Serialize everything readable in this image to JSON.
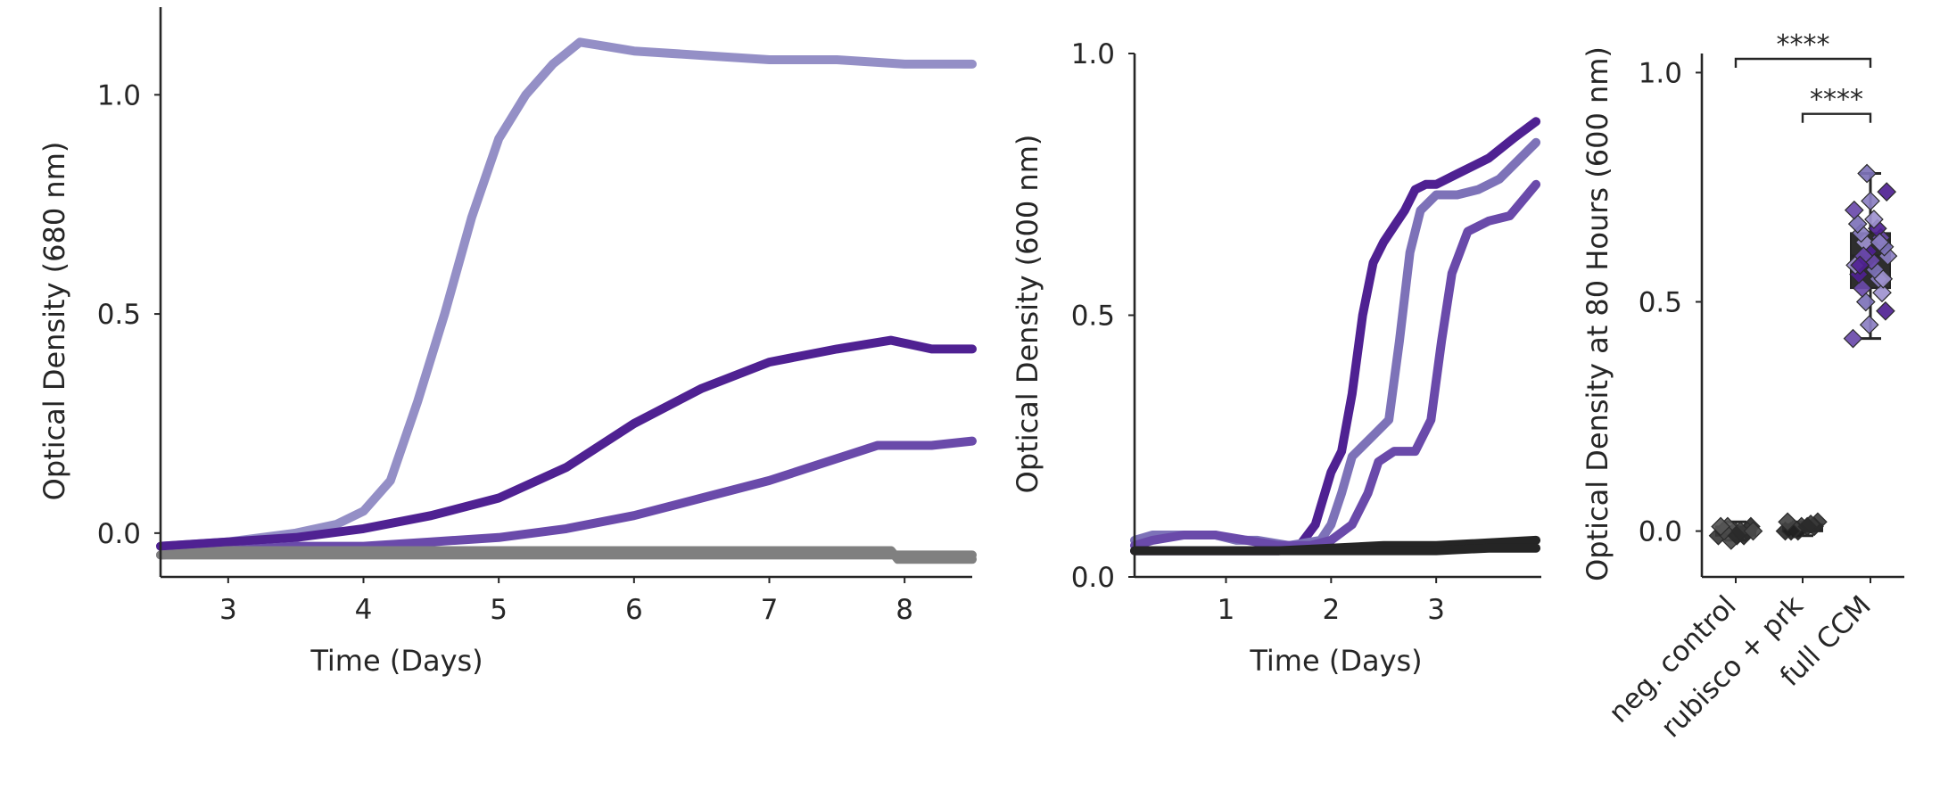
{
  "colors": {
    "dark_purple": "#4f2192",
    "mid_purple": "#6a4aaa",
    "lavender": "#948fc6",
    "light_purple": "#7d72b8",
    "gray": "#808080",
    "dark_gray": "#252525",
    "black": "#262626"
  },
  "chart_data": [
    {
      "type": "line",
      "xlabel": "Time (Days)",
      "ylabel": "Optical Density (680 nm)",
      "xlim": [
        2.5,
        8.5
      ],
      "ylim": [
        -0.1,
        1.2
      ],
      "xticks": [
        3,
        4,
        5,
        6,
        7,
        8
      ],
      "yticks": [
        0.0,
        0.5,
        1.0
      ],
      "xtick_labels": [
        "3",
        "4",
        "5",
        "6",
        "7",
        "8"
      ],
      "ytick_labels": [
        "0.0",
        "0.5",
        "1.0"
      ],
      "grid": false,
      "series": [
        {
          "color": "#948fc6",
          "x": [
            2.5,
            3.0,
            3.5,
            3.8,
            4.0,
            4.2,
            4.4,
            4.6,
            4.8,
            5.0,
            5.2,
            5.4,
            5.6,
            5.8,
            6.0,
            6.5,
            7.0,
            7.5,
            8.0,
            8.5
          ],
          "y": [
            -0.03,
            -0.02,
            0.0,
            0.02,
            0.05,
            0.12,
            0.3,
            0.5,
            0.72,
            0.9,
            1.0,
            1.07,
            1.12,
            1.11,
            1.1,
            1.09,
            1.08,
            1.08,
            1.07,
            1.07
          ]
        },
        {
          "color": "#4f2192",
          "x": [
            2.5,
            3.0,
            3.5,
            4.0,
            4.5,
            5.0,
            5.5,
            6.0,
            6.5,
            7.0,
            7.5,
            7.9,
            8.2,
            8.5
          ],
          "y": [
            -0.03,
            -0.02,
            -0.01,
            0.01,
            0.04,
            0.08,
            0.15,
            0.25,
            0.33,
            0.39,
            0.42,
            0.44,
            0.42,
            0.42
          ]
        },
        {
          "color": "#6a4aaa",
          "x": [
            2.5,
            3.0,
            3.5,
            4.0,
            4.5,
            5.0,
            5.5,
            6.0,
            6.5,
            7.0,
            7.5,
            7.8,
            8.2,
            8.5
          ],
          "y": [
            -0.05,
            -0.04,
            -0.03,
            -0.03,
            -0.02,
            -0.01,
            0.01,
            0.04,
            0.08,
            0.12,
            0.17,
            0.2,
            0.2,
            0.21
          ]
        },
        {
          "color": "#808080",
          "x": [
            2.5,
            3.0,
            4.0,
            5.0,
            6.0,
            7.0,
            7.9,
            8.5
          ],
          "y": [
            -0.05,
            -0.05,
            -0.05,
            -0.05,
            -0.05,
            -0.05,
            -0.05,
            -0.05
          ]
        },
        {
          "color": "#808080",
          "x": [
            2.5,
            3.0,
            4.0,
            5.0,
            6.0,
            7.0,
            7.9,
            7.95,
            8.5
          ],
          "y": [
            -0.05,
            -0.04,
            -0.04,
            -0.04,
            -0.04,
            -0.04,
            -0.04,
            -0.06,
            -0.06
          ]
        }
      ]
    },
    {
      "type": "line",
      "xlabel": "Time (Days)",
      "ylabel": "Optical Density (600 nm)",
      "xlim": [
        0.13,
        4.0
      ],
      "ylim": [
        0.0,
        1.0
      ],
      "xticks": [
        1,
        2,
        3
      ],
      "yticks": [
        0.0,
        0.5,
        1.0
      ],
      "xtick_labels": [
        "1",
        "2",
        "3"
      ],
      "ytick_labels": [
        "0.0",
        "0.5",
        "1.0"
      ],
      "grid": false,
      "series": [
        {
          "color": "#4f2192",
          "x": [
            0.13,
            0.5,
            1.0,
            1.5,
            1.7,
            1.85,
            2.0,
            2.1,
            2.2,
            2.3,
            2.4,
            2.5,
            2.6,
            2.7,
            2.8,
            2.9,
            3.0,
            3.2,
            3.5,
            3.75,
            3.95
          ],
          "y": [
            0.05,
            0.05,
            0.05,
            0.05,
            0.06,
            0.1,
            0.2,
            0.24,
            0.35,
            0.5,
            0.6,
            0.64,
            0.67,
            0.7,
            0.74,
            0.75,
            0.75,
            0.77,
            0.8,
            0.84,
            0.87
          ]
        },
        {
          "color": "#7d72b8",
          "x": [
            0.13,
            0.3,
            0.6,
            0.9,
            1.1,
            1.3,
            1.6,
            1.9,
            2.0,
            2.1,
            2.2,
            2.4,
            2.55,
            2.65,
            2.75,
            2.85,
            3.0,
            3.2,
            3.4,
            3.6,
            3.95
          ],
          "y": [
            0.07,
            0.08,
            0.08,
            0.08,
            0.07,
            0.07,
            0.06,
            0.07,
            0.1,
            0.16,
            0.23,
            0.27,
            0.3,
            0.45,
            0.62,
            0.7,
            0.73,
            0.73,
            0.74,
            0.76,
            0.83
          ]
        },
        {
          "color": "#6a4aaa",
          "x": [
            0.13,
            0.3,
            0.6,
            0.9,
            1.2,
            1.5,
            1.8,
            2.0,
            2.2,
            2.35,
            2.45,
            2.6,
            2.8,
            2.95,
            3.05,
            3.15,
            3.3,
            3.5,
            3.7,
            3.95
          ],
          "y": [
            0.06,
            0.07,
            0.08,
            0.08,
            0.07,
            0.06,
            0.06,
            0.07,
            0.1,
            0.16,
            0.22,
            0.24,
            0.24,
            0.3,
            0.45,
            0.58,
            0.66,
            0.68,
            0.69,
            0.75
          ]
        },
        {
          "color": "#252525",
          "x": [
            0.13,
            0.5,
            1.0,
            1.5,
            2.0,
            2.5,
            3.0,
            3.5,
            3.95
          ],
          "y": [
            0.05,
            0.05,
            0.05,
            0.05,
            0.055,
            0.06,
            0.06,
            0.065,
            0.07
          ]
        },
        {
          "color": "#252525",
          "x": [
            0.13,
            0.5,
            1.0,
            1.5,
            2.0,
            2.5,
            3.0,
            3.5,
            3.95
          ],
          "y": [
            0.05,
            0.05,
            0.05,
            0.05,
            0.05,
            0.05,
            0.05,
            0.055,
            0.055
          ]
        }
      ]
    },
    {
      "type": "scatter",
      "ylabel": "Optical Density at 80 Hours (600 nm)",
      "categories": [
        "neg. control",
        "rubisco + prk",
        "full CCM"
      ],
      "ylim": [
        -0.1,
        1.1
      ],
      "yticks": [
        0.0,
        0.5,
        1.0
      ],
      "ytick_labels": [
        "0.0",
        "0.5",
        "1.0"
      ],
      "grid": false,
      "boxes": [
        {
          "category": "neg. control",
          "q1": -0.01,
          "median": 0.0,
          "q3": 0.01,
          "whisker_low": -0.02,
          "whisker_high": 0.02
        },
        {
          "category": "rubisco + prk",
          "q1": 0.0,
          "median": 0.005,
          "q3": 0.015,
          "whisker_low": -0.01,
          "whisker_high": 0.02
        },
        {
          "category": "full CCM",
          "q1": 0.53,
          "median": 0.6,
          "q3": 0.65,
          "whisker_low": 0.42,
          "whisker_high": 0.78
        }
      ],
      "points": [
        {
          "category": "neg. control",
          "values": [
            -0.01,
            0.0,
            0.01,
            -0.02,
            0.0,
            0.01,
            -0.01,
            0.0,
            0.0,
            0.01,
            -0.01,
            0.0
          ]
        },
        {
          "category": "rubisco + prk",
          "values": [
            0.0,
            0.01,
            0.02,
            0.0,
            0.01,
            0.005,
            0.015,
            0.0,
            0.01,
            0.02
          ]
        },
        {
          "category": "full CCM",
          "values": [
            0.42,
            0.45,
            0.48,
            0.5,
            0.52,
            0.53,
            0.55,
            0.56,
            0.57,
            0.58,
            0.59,
            0.6,
            0.61,
            0.62,
            0.63,
            0.64,
            0.65,
            0.66,
            0.67,
            0.68,
            0.7,
            0.72,
            0.74,
            0.78,
            0.55,
            0.6,
            0.63,
            0.58
          ]
        }
      ],
      "annotations": [
        {
          "text": "****",
          "from": "neg. control",
          "to": "full CCM",
          "y": 1.03
        },
        {
          "text": "****",
          "from": "rubisco + prk",
          "to": "full CCM",
          "y": 0.91
        }
      ]
    }
  ]
}
